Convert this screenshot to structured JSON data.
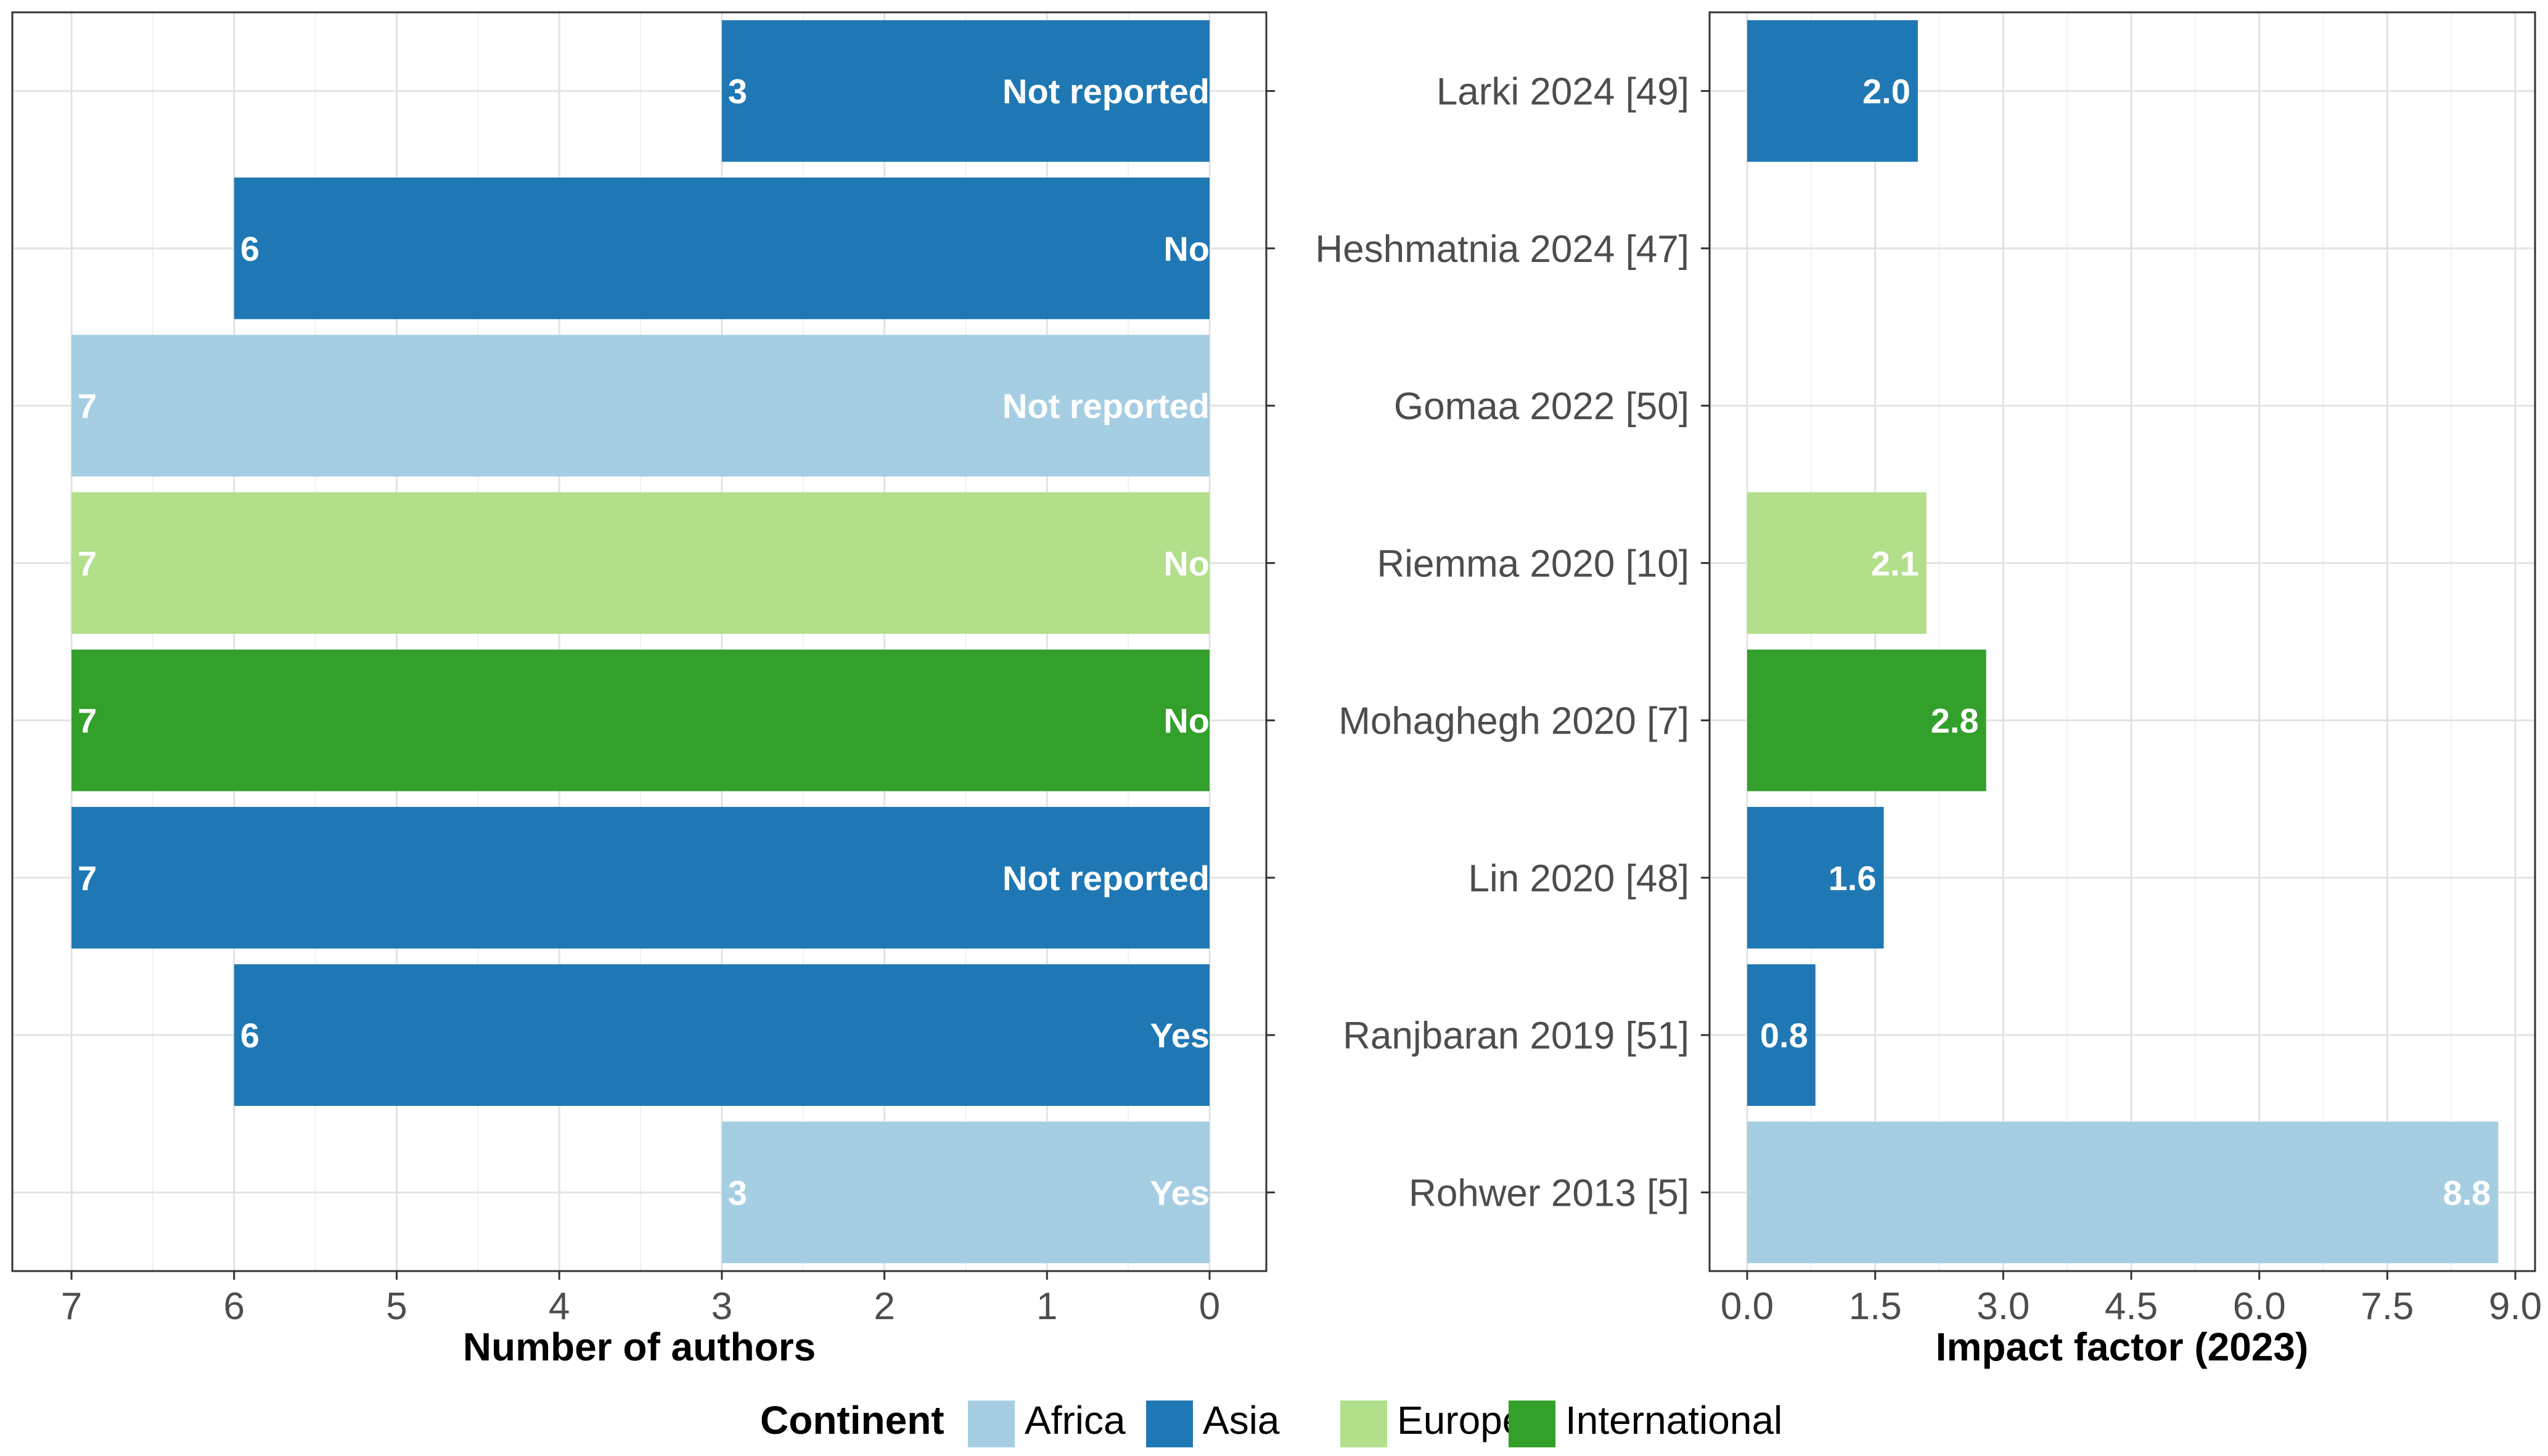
{
  "chart_data": [
    {
      "type": "bar",
      "orientation": "horizontal",
      "xlabel": "Number of authors",
      "x_reversed": true,
      "xlim": [
        0,
        7
      ],
      "xticks": [
        "7",
        "6",
        "5",
        "4",
        "3",
        "2",
        "1",
        "0"
      ],
      "categories": [
        "Larki 2024 [49]",
        "Heshmatnia 2024 [47]",
        "Gomaa 2022 [50]",
        "Riemma 2020 [10]",
        "Mohaghegh 2020 [7]",
        "Lin 2020 [48]",
        "Ranjbaran 2019 [51]",
        "Rohwer 2013 [5]"
      ],
      "values": [
        3,
        6,
        7,
        7,
        7,
        7,
        6,
        3
      ],
      "value_labels": [
        "3",
        "6",
        "7",
        "7",
        "7",
        "7",
        "6",
        "3"
      ],
      "annotations": [
        "Not reported",
        "No",
        "Not reported",
        "No",
        "No",
        "Not reported",
        "Yes",
        "Yes"
      ],
      "continent": [
        "Asia",
        "Asia",
        "Africa",
        "Europe",
        "International",
        "Asia",
        "Asia",
        "Africa"
      ],
      "grid": true
    },
    {
      "type": "bar",
      "orientation": "horizontal",
      "xlabel": "Impact factor (2023)",
      "xlim": [
        0,
        9
      ],
      "xticks": [
        "0.0",
        "1.5",
        "3.0",
        "4.5",
        "6.0",
        "7.5",
        "9.0"
      ],
      "categories": [
        "Larki 2024 [49]",
        "Heshmatnia 2024 [47]",
        "Gomaa 2022 [50]",
        "Riemma 2020 [10]",
        "Mohaghegh 2020 [7]",
        "Lin 2020 [48]",
        "Ranjbaran 2019 [51]",
        "Rohwer 2013 [5]"
      ],
      "values": [
        2.0,
        null,
        null,
        2.1,
        2.8,
        1.6,
        0.8,
        8.8
      ],
      "value_labels": [
        "2.0",
        "",
        "",
        "2.1",
        "2.8",
        "1.6",
        "0.8",
        "8.8"
      ],
      "continent": [
        "Asia",
        "Asia",
        "Africa",
        "Europe",
        "International",
        "Asia",
        "Asia",
        "Africa"
      ],
      "grid": true
    }
  ],
  "legend": {
    "title": "Continent",
    "placement": "bottom",
    "items": [
      {
        "label": "Africa",
        "color": "#a6cee3"
      },
      {
        "label": "Asia",
        "color": "#1f78b4"
      },
      {
        "label": "Europe",
        "color": "#b2df8a"
      },
      {
        "label": "International",
        "color": "#33a02c"
      }
    ]
  }
}
